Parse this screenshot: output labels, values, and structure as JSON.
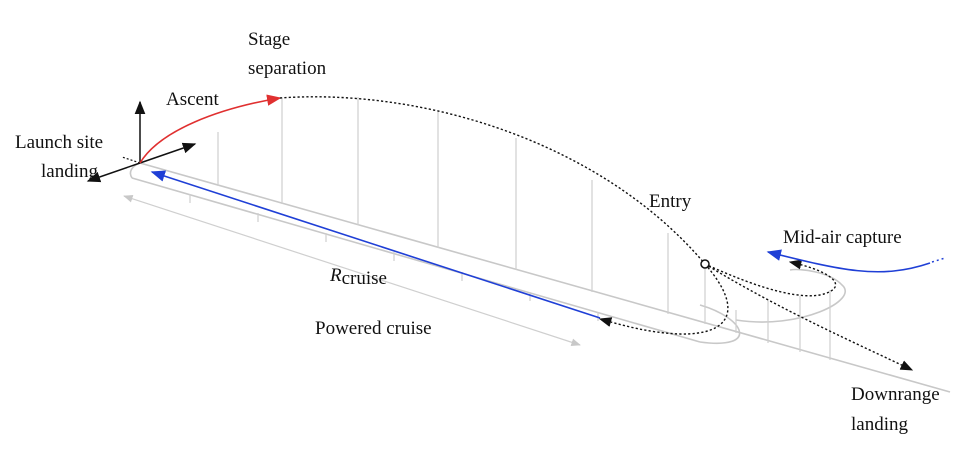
{
  "labels": {
    "stage_separation_line1": "Stage",
    "stage_separation_line2": "separation",
    "ascent": "Ascent",
    "launch_site_line1": "Launch site",
    "launch_site_line2": "landing",
    "entry": "Entry",
    "mid_air_capture": "Mid-air capture",
    "r_symbol": "R",
    "r_subscript": "cruise",
    "powered_cruise": "Powered cruise",
    "downrange_line1": "Downrange",
    "downrange_line2": "landing"
  },
  "colors": {
    "ascent": "#e03030",
    "cruise": "#1f3fd6",
    "capture": "#1f3fd6",
    "ground": "#c8c8c8",
    "trajectory": "#111111"
  }
}
